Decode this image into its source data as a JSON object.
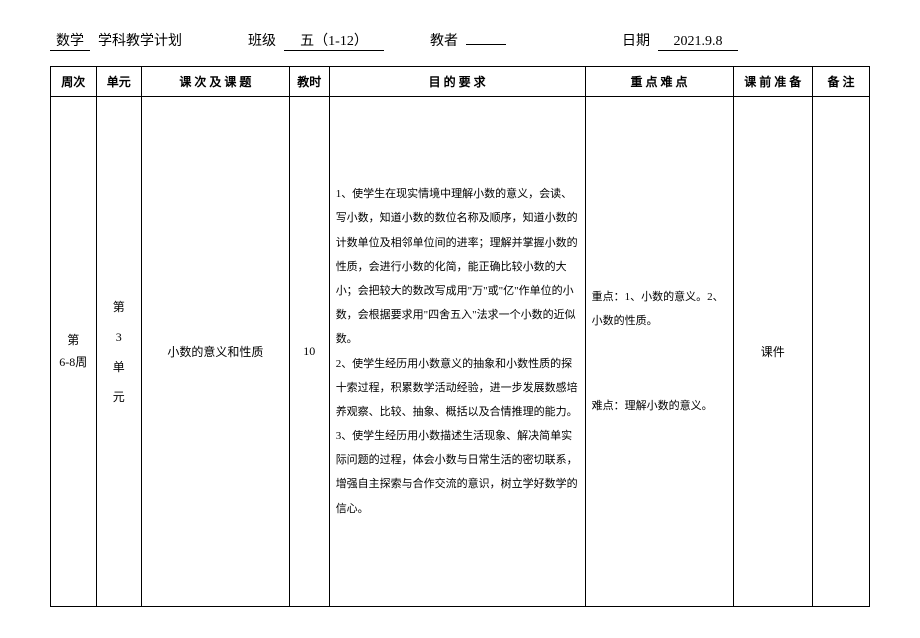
{
  "header": {
    "subject_value": "数学",
    "subject_suffix": "学科教学计划",
    "class_label": "班级",
    "class_value": "五（1-12）",
    "teacher_label": "教者",
    "teacher_value": "",
    "date_label": "日期",
    "date_value": "2021.9.8"
  },
  "table": {
    "headers": {
      "week": "周次",
      "unit": "单元",
      "lesson": "课 次 及 课 题",
      "hours": "教时",
      "objectives": "目 的 要 求",
      "keypoints": "重 点 难 点",
      "prep": "课 前 准 备",
      "notes": "备  注"
    },
    "row": {
      "week": "第\n6-8周",
      "unit": "第\n3\n单\n元",
      "lesson": "小数的意义和性质",
      "hours": "10",
      "objectives": "1、使学生在现实情境中理解小数的意义，会读、写小数，知道小数的数位名称及顺序，知道小数的计数单位及相邻单位间的进率；理解并掌握小数的性质，会进行小数的化简，能正确比较小数的大小；会把较大的数改写成用\"万\"或\"亿\"作单位的小数，会根据要求用\"四舍五入\"法求一个小数的近似数。\n2、使学生经历用小数意义的抽象和小数性质的探十索过程，积累数学活动经验，进一步发展数感培养观察、比较、抽象、概括以及合情推理的能力。\n3、使学生经历用小数描述生活现象、解决简单实际问题的过程，体会小数与日常生活的密切联系，增强自主探索与合作交流的意识，树立学好数学的信心。",
      "keypoints_focus": "重点：1、小数的意义。2、小数的性质。",
      "keypoints_difficulty": "难点：理解小数的意义。",
      "prep": "课件",
      "notes": ""
    }
  }
}
